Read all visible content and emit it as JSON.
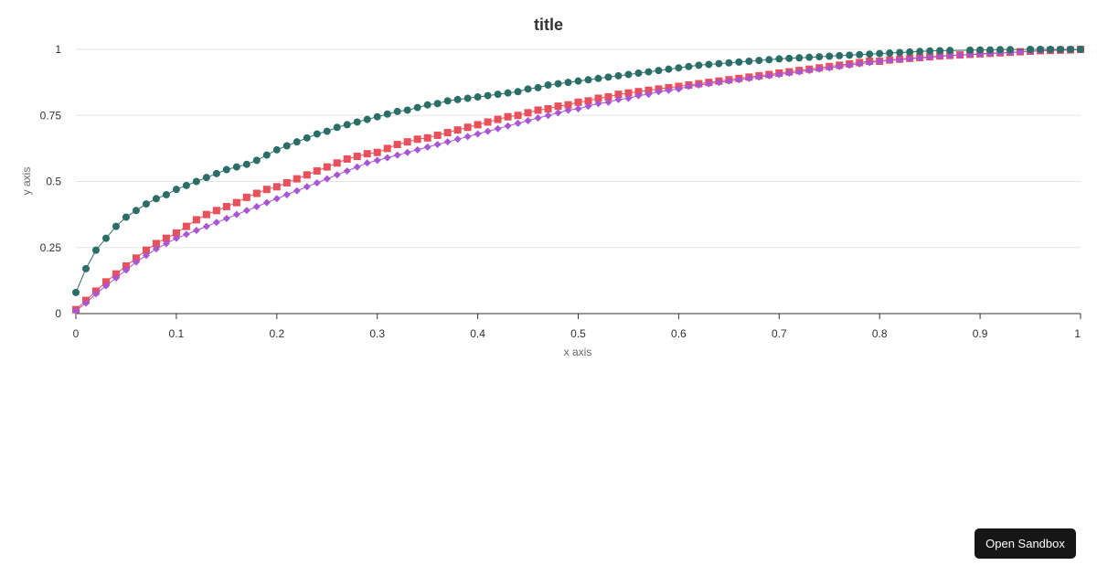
{
  "chart_data": {
    "type": "line",
    "title": "title",
    "xlabel": "x axis",
    "ylabel": "y axis",
    "xlim": [
      0,
      1
    ],
    "ylim": [
      0,
      1
    ],
    "x_ticks": [
      "0",
      "0.1",
      "0.2",
      "0.3",
      "0.4",
      "0.5",
      "0.6",
      "0.7",
      "0.8",
      "0.9",
      "1"
    ],
    "y_ticks": [
      "0",
      "0.25",
      "0.5",
      "0.75",
      "1"
    ],
    "grid": "horizontal",
    "legend": "none",
    "series": [
      {
        "color": "#e8505b",
        "marker": "square",
        "x": [
          0,
          0.01,
          0.02,
          0.03,
          0.04,
          0.05,
          0.06,
          0.07,
          0.08,
          0.09,
          0.1,
          0.11,
          0.12,
          0.13,
          0.14,
          0.15,
          0.16,
          0.17,
          0.18,
          0.19,
          0.2,
          0.21,
          0.22,
          0.23,
          0.24,
          0.25,
          0.26,
          0.27,
          0.28,
          0.29,
          0.3,
          0.31,
          0.32,
          0.33,
          0.34,
          0.35,
          0.36,
          0.37,
          0.38,
          0.39,
          0.4,
          0.41,
          0.42,
          0.43,
          0.44,
          0.45,
          0.46,
          0.47,
          0.48,
          0.49,
          0.5,
          0.51,
          0.52,
          0.53,
          0.54,
          0.55,
          0.56,
          0.57,
          0.58,
          0.59,
          0.6,
          0.61,
          0.62,
          0.63,
          0.64,
          0.65,
          0.66,
          0.67,
          0.68,
          0.69,
          0.7,
          0.71,
          0.72,
          0.73,
          0.74,
          0.75,
          0.76,
          0.77,
          0.78,
          0.79,
          0.8,
          0.81,
          0.82,
          0.83,
          0.84,
          0.85,
          0.86,
          0.87,
          0.88,
          0.89,
          0.9,
          0.91,
          0.92,
          0.93,
          0.94,
          0.95,
          0.96,
          0.97,
          0.98,
          0.99,
          1
        ],
        "y": [
          0.015,
          0.05,
          0.085,
          0.12,
          0.15,
          0.18,
          0.21,
          0.24,
          0.265,
          0.285,
          0.305,
          0.33,
          0.355,
          0.375,
          0.39,
          0.405,
          0.42,
          0.44,
          0.455,
          0.47,
          0.48,
          0.495,
          0.51,
          0.525,
          0.54,
          0.555,
          0.57,
          0.585,
          0.595,
          0.605,
          0.61,
          0.625,
          0.64,
          0.65,
          0.66,
          0.665,
          0.675,
          0.685,
          0.695,
          0.705,
          0.715,
          0.725,
          0.735,
          0.745,
          0.75,
          0.76,
          0.77,
          0.775,
          0.785,
          0.79,
          0.8,
          0.805,
          0.815,
          0.82,
          0.83,
          0.835,
          0.84,
          0.845,
          0.85,
          0.855,
          0.86,
          0.865,
          0.87,
          0.875,
          0.88,
          0.885,
          0.89,
          0.895,
          0.9,
          0.905,
          0.91,
          0.915,
          0.92,
          0.925,
          0.93,
          0.935,
          0.94,
          0.945,
          0.95,
          0.955,
          0.955,
          0.96,
          0.963,
          0.966,
          0.969,
          0.972,
          0.975,
          0.977,
          0.979,
          0.981,
          0.983,
          0.985,
          0.987,
          0.989,
          0.991,
          0.993,
          0.995,
          0.996,
          0.997,
          0.998,
          1
        ]
      },
      {
        "color": "#a855d6",
        "marker": "diamond",
        "x": [
          0,
          0.01,
          0.02,
          0.03,
          0.04,
          0.05,
          0.06,
          0.07,
          0.08,
          0.09,
          0.1,
          0.11,
          0.12,
          0.13,
          0.14,
          0.15,
          0.16,
          0.17,
          0.18,
          0.19,
          0.2,
          0.21,
          0.22,
          0.23,
          0.24,
          0.25,
          0.26,
          0.27,
          0.28,
          0.29,
          0.3,
          0.31,
          0.32,
          0.33,
          0.34,
          0.35,
          0.36,
          0.37,
          0.38,
          0.39,
          0.4,
          0.41,
          0.42,
          0.43,
          0.44,
          0.45,
          0.46,
          0.47,
          0.48,
          0.49,
          0.5,
          0.51,
          0.52,
          0.53,
          0.54,
          0.55,
          0.56,
          0.57,
          0.58,
          0.59,
          0.6,
          0.61,
          0.62,
          0.63,
          0.64,
          0.65,
          0.66,
          0.67,
          0.68,
          0.69,
          0.7,
          0.71,
          0.72,
          0.73,
          0.74,
          0.75,
          0.76,
          0.77,
          0.78,
          0.79,
          0.8,
          0.81,
          0.82,
          0.83,
          0.84,
          0.85,
          0.86,
          0.87,
          0.88,
          0.89,
          0.9,
          0.91,
          0.92,
          0.93,
          0.94,
          0.95,
          0.96,
          0.97,
          0.98,
          0.99,
          1
        ],
        "y": [
          0.01,
          0.04,
          0.075,
          0.105,
          0.135,
          0.165,
          0.195,
          0.22,
          0.245,
          0.265,
          0.285,
          0.3,
          0.315,
          0.33,
          0.345,
          0.36,
          0.375,
          0.39,
          0.405,
          0.42,
          0.435,
          0.45,
          0.465,
          0.48,
          0.495,
          0.51,
          0.525,
          0.54,
          0.555,
          0.57,
          0.58,
          0.59,
          0.6,
          0.61,
          0.62,
          0.63,
          0.64,
          0.65,
          0.66,
          0.67,
          0.68,
          0.69,
          0.7,
          0.71,
          0.72,
          0.73,
          0.74,
          0.75,
          0.76,
          0.77,
          0.775,
          0.785,
          0.795,
          0.8,
          0.81,
          0.815,
          0.825,
          0.83,
          0.84,
          0.845,
          0.85,
          0.86,
          0.865,
          0.87,
          0.875,
          0.88,
          0.885,
          0.89,
          0.895,
          0.9,
          0.905,
          0.91,
          0.915,
          0.92,
          0.925,
          0.93,
          0.935,
          0.94,
          0.945,
          0.95,
          0.955,
          0.958,
          0.961,
          0.964,
          0.967,
          0.97,
          0.973,
          0.976,
          0.978,
          0.98,
          0.982,
          0.984,
          0.986,
          0.988,
          0.99,
          0.992,
          0.994,
          0.996,
          0.997,
          0.998,
          1
        ]
      },
      {
        "color": "#2b6e68",
        "marker": "circle",
        "x": [
          0,
          0.01,
          0.02,
          0.03,
          0.04,
          0.05,
          0.06,
          0.07,
          0.08,
          0.09,
          0.1,
          0.11,
          0.12,
          0.13,
          0.14,
          0.15,
          0.16,
          0.17,
          0.18,
          0.19,
          0.2,
          0.21,
          0.22,
          0.23,
          0.24,
          0.25,
          0.26,
          0.27,
          0.28,
          0.29,
          0.3,
          0.31,
          0.32,
          0.33,
          0.34,
          0.35,
          0.36,
          0.37,
          0.38,
          0.39,
          0.4,
          0.41,
          0.42,
          0.43,
          0.44,
          0.45,
          0.46,
          0.47,
          0.48,
          0.49,
          0.5,
          0.51,
          0.52,
          0.53,
          0.54,
          0.55,
          0.56,
          0.57,
          0.58,
          0.59,
          0.6,
          0.61,
          0.62,
          0.63,
          0.64,
          0.65,
          0.66,
          0.67,
          0.68,
          0.69,
          0.7,
          0.71,
          0.72,
          0.73,
          0.74,
          0.75,
          0.76,
          0.77,
          0.78,
          0.79,
          0.8,
          0.81,
          0.82,
          0.83,
          0.84,
          0.85,
          0.86,
          0.87,
          0.89,
          0.9,
          0.91,
          0.92,
          0.93,
          0.95,
          0.96,
          0.97,
          0.98,
          0.99,
          1
        ],
        "y": [
          0.08,
          0.17,
          0.24,
          0.285,
          0.33,
          0.365,
          0.39,
          0.415,
          0.435,
          0.45,
          0.47,
          0.485,
          0.5,
          0.515,
          0.53,
          0.545,
          0.555,
          0.565,
          0.58,
          0.6,
          0.62,
          0.635,
          0.65,
          0.665,
          0.68,
          0.69,
          0.705,
          0.715,
          0.725,
          0.735,
          0.745,
          0.755,
          0.765,
          0.77,
          0.78,
          0.79,
          0.795,
          0.805,
          0.81,
          0.815,
          0.82,
          0.825,
          0.83,
          0.835,
          0.84,
          0.85,
          0.855,
          0.865,
          0.87,
          0.875,
          0.88,
          0.885,
          0.89,
          0.895,
          0.9,
          0.905,
          0.91,
          0.915,
          0.92,
          0.925,
          0.93,
          0.935,
          0.94,
          0.943,
          0.946,
          0.949,
          0.952,
          0.955,
          0.958,
          0.961,
          0.964,
          0.966,
          0.968,
          0.97,
          0.972,
          0.974,
          0.976,
          0.978,
          0.98,
          0.982,
          0.984,
          0.986,
          0.988,
          0.99,
          0.992,
          0.994,
          0.995,
          0.996,
          0.997,
          0.998,
          0.998,
          0.999,
          0.999,
          1,
          1,
          1,
          1,
          1,
          1
        ]
      }
    ]
  },
  "sandbox": {
    "label": "Open Sandbox"
  },
  "colors": {
    "grid": "#e5e5e5",
    "axis": "#666666",
    "button_bg": "#161616"
  }
}
